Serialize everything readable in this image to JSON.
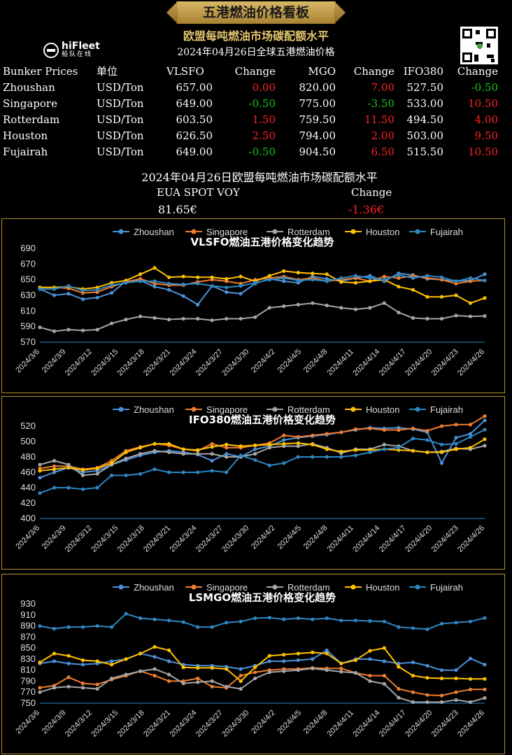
{
  "header": {
    "banner": "五港燃油价格看板",
    "subtitle": "欧盟每吨燃油市场碳配额水平",
    "date_title": "2024年04月26日全球五港燃油价格",
    "logo_name": "hiFleet",
    "logo_sub": "船队在线"
  },
  "prices": {
    "headers": [
      "Bunker Prices",
      "单位",
      "VLSFO",
      "Change",
      "MGO",
      "Change",
      "IFO380",
      "Change"
    ],
    "rows": [
      {
        "port": "Zhoushan",
        "unit": "USD/Ton",
        "vlsfo": "657.00",
        "vlsfo_chg": "0.00",
        "mgo": "820.00",
        "mgo_chg": "7.00",
        "ifo": "527.50",
        "ifo_chg": "-0.50"
      },
      {
        "port": "Singapore",
        "unit": "USD/Ton",
        "vlsfo": "649.00",
        "vlsfo_chg": "-0.50",
        "mgo": "775.00",
        "mgo_chg": "-3.50",
        "ifo": "533.00",
        "ifo_chg": "10.50"
      },
      {
        "port": "Rotterdam",
        "unit": "USD/Ton",
        "vlsfo": "603.50",
        "vlsfo_chg": "1.50",
        "mgo": "759.50",
        "mgo_chg": "11.50",
        "ifo": "494.50",
        "ifo_chg": "4.00"
      },
      {
        "port": "Houston",
        "unit": "USD/Ton",
        "vlsfo": "626.50",
        "vlsfo_chg": "2.50",
        "mgo": "794.00",
        "mgo_chg": "2.00",
        "ifo": "503.00",
        "ifo_chg": "9.50"
      },
      {
        "port": "Fujairah",
        "unit": "USD/Ton",
        "vlsfo": "649.00",
        "vlsfo_chg": "-0.50",
        "mgo": "904.50",
        "mgo_chg": "6.50",
        "ifo": "515.50",
        "ifo_chg": "10.50"
      }
    ],
    "colors": {
      "up": "#ff2020",
      "down": "#19c419",
      "flat": "#ff2020"
    }
  },
  "eua": {
    "title": "2024年04月26日欧盟每吨燃油市场碳配额水平",
    "label": "EUA SPOT VOY",
    "change_label": "Change",
    "value": "81.65€",
    "change": "-1.36€"
  },
  "series_colors": {
    "Zhoushan": "#4a90d9",
    "Singapore": "#ed7d31",
    "Rotterdam": "#a5a5a5",
    "Houston": "#ffc000",
    "Fujairah": "#2e86c1"
  },
  "chart_data": [
    {
      "type": "line",
      "title": "VLSFO燃油五港价格变化趋势",
      "legend_position": "top",
      "ylim": [
        570,
        690
      ],
      "yticks": [
        570,
        590,
        610,
        630,
        650,
        670,
        690
      ],
      "xtick_labels": [
        "2024/3/6",
        "2024/3/9",
        "2024/3/12",
        "2024/3/15",
        "2024/3/18",
        "2024/3/21",
        "2024/3/24",
        "2024/3/27",
        "2024/3/30",
        "2024/4/2",
        "2024/4/5",
        "2024/4/8",
        "2024/4/11",
        "2024/4/14",
        "2024/4/17",
        "2024/4/20",
        "2024/4/23",
        "2024/4/26"
      ],
      "series": [
        {
          "name": "Zhoushan",
          "values": [
            638,
            630,
            632,
            625,
            627,
            633,
            648,
            649,
            641,
            637,
            629,
            618,
            642,
            634,
            632,
            645,
            651,
            648,
            646,
            654,
            651,
            648,
            652,
            655,
            648,
            658,
            656,
            651,
            650,
            648,
            649,
            657
          ]
        },
        {
          "name": "Singapore",
          "values": [
            640,
            640,
            639,
            633,
            634,
            641,
            647,
            651,
            645,
            643,
            643,
            647,
            650,
            648,
            645,
            650,
            652,
            654,
            650,
            652,
            648,
            650,
            652,
            648,
            654,
            652,
            655,
            652,
            650,
            645,
            648,
            649
          ]
        },
        {
          "name": "Rotterdam",
          "values": [
            589,
            584,
            586,
            585,
            586,
            594,
            599,
            603,
            601,
            599,
            600,
            600,
            598,
            600,
            600,
            602,
            614,
            616,
            618,
            620,
            617,
            614,
            612,
            614,
            620,
            608,
            601,
            600,
            600,
            604,
            603,
            603.5
          ]
        },
        {
          "name": "Houston",
          "values": [
            640,
            640,
            641,
            638,
            640,
            646,
            649,
            657,
            665,
            653,
            654,
            653,
            653,
            651,
            654,
            648,
            655,
            661,
            659,
            658,
            657,
            647,
            646,
            648,
            650,
            641,
            637,
            628,
            628,
            630,
            620,
            626.5
          ]
        },
        {
          "name": "Fujairah",
          "values": [
            638,
            638,
            642,
            636,
            637,
            643,
            646,
            648,
            648,
            645,
            644,
            645,
            642,
            640,
            642,
            646,
            650,
            652,
            649,
            650,
            648,
            652,
            655,
            652,
            650,
            656,
            652,
            655,
            653,
            648,
            652,
            649
          ]
        }
      ]
    },
    {
      "type": "line",
      "title": "IFO380燃油五港价格变化趋势",
      "legend_position": "top",
      "ylim": [
        400,
        520
      ],
      "yticks": [
        400,
        420,
        440,
        460,
        480,
        500,
        520
      ],
      "xtick_labels": [
        "2024/3/6",
        "2024/3/9",
        "2024/3/12",
        "2024/3/15",
        "2024/3/18",
        "2024/3/21",
        "2024/3/24",
        "2024/3/27",
        "2024/3/30",
        "2024/4/2",
        "2024/4/5",
        "2024/4/8",
        "2024/4/11",
        "2024/4/14",
        "2024/4/17",
        "2024/4/20",
        "2024/4/23",
        "2024/4/26"
      ],
      "series": [
        {
          "name": "Zhoushan",
          "values": [
            453,
            460,
            466,
            460,
            462,
            470,
            476,
            482,
            486,
            488,
            486,
            483,
            475,
            484,
            480,
            490,
            494,
            502,
            505,
            507,
            509,
            512,
            515,
            518,
            517,
            518,
            516,
            512,
            472,
            505,
            510,
            527.5
          ]
        },
        {
          "name": "Singapore",
          "values": [
            465,
            468,
            468,
            464,
            466,
            475,
            488,
            493,
            497,
            495,
            490,
            488,
            497,
            492,
            492,
            495,
            498,
            508,
            506,
            508,
            510,
            512,
            516,
            517,
            515,
            515,
            517,
            514,
            520,
            522,
            522,
            533
          ]
        },
        {
          "name": "Rotterdam",
          "values": [
            470,
            475,
            470,
            456,
            458,
            470,
            478,
            484,
            488,
            486,
            484,
            484,
            484,
            480,
            480,
            484,
            492,
            494,
            494,
            497,
            492,
            485,
            490,
            490,
            496,
            494,
            488,
            486,
            487,
            491,
            490,
            494.5
          ]
        },
        {
          "name": "Houston",
          "values": [
            462,
            464,
            466,
            463,
            465,
            472,
            486,
            492,
            497,
            497,
            490,
            489,
            493,
            496,
            494,
            495,
            496,
            497,
            498,
            496,
            490,
            487,
            489,
            489,
            490,
            489,
            488,
            486,
            486,
            490,
            492,
            503
          ]
        },
        {
          "name": "Fujairah",
          "values": [
            433,
            440,
            440,
            438,
            440,
            456,
            456,
            458,
            464,
            460,
            460,
            460,
            462,
            460,
            482,
            476,
            469,
            472,
            480,
            480,
            480,
            480,
            482,
            486,
            490,
            492,
            504,
            502,
            496,
            497,
            506,
            515.5
          ]
        }
      ]
    },
    {
      "type": "line",
      "title": "LSMGO燃油五港价格变化趋势",
      "legend_position": "top",
      "ylim": [
        750,
        930
      ],
      "yticks": [
        750,
        770,
        790,
        810,
        830,
        850,
        870,
        890,
        910,
        930
      ],
      "xtick_labels": [
        "2024/3/6",
        "2024/3/9",
        "2024/3/12",
        "2024/3/15",
        "2024/3/18",
        "2024/3/21",
        "2024/3/24",
        "2024/3/27",
        "2024/3/30",
        "2024/4/2",
        "2024/4/5",
        "2024/4/8",
        "2024/4/11",
        "2024/4/14",
        "2024/4/17",
        "2024/4/20",
        "2024/4/23",
        "2024/4/26"
      ],
      "series": [
        {
          "name": "Zhoushan",
          "values": [
            822,
            826,
            822,
            820,
            822,
            826,
            830,
            840,
            834,
            826,
            820,
            818,
            818,
            816,
            812,
            818,
            826,
            826,
            828,
            830,
            846,
            822,
            830,
            830,
            826,
            822,
            824,
            818,
            810,
            810,
            831,
            820
          ]
        },
        {
          "name": "Singapore",
          "values": [
            778,
            782,
            797,
            786,
            784,
            793,
            800,
            808,
            800,
            790,
            790,
            795,
            780,
            778,
            800,
            806,
            810,
            812,
            812,
            814,
            813,
            813,
            805,
            800,
            800,
            776,
            770,
            765,
            764,
            770,
            775,
            775
          ]
        },
        {
          "name": "Rotterdam",
          "values": [
            770,
            778,
            780,
            778,
            776,
            795,
            802,
            808,
            812,
            802,
            786,
            788,
            790,
            780,
            776,
            795,
            806,
            808,
            810,
            813,
            810,
            807,
            805,
            790,
            785,
            760,
            752,
            752,
            752,
            756,
            752,
            759.5
          ]
        },
        {
          "name": "Houston",
          "values": [
            824,
            840,
            836,
            828,
            826,
            820,
            830,
            840,
            852,
            846,
            815,
            814,
            814,
            812,
            790,
            815,
            836,
            838,
            840,
            842,
            840,
            822,
            828,
            845,
            850,
            816,
            800,
            796,
            795,
            795,
            794,
            794
          ]
        },
        {
          "name": "Fujairah",
          "values": [
            890,
            885,
            888,
            888,
            890,
            888,
            912,
            904,
            902,
            900,
            897,
            888,
            888,
            896,
            898,
            904,
            905,
            902,
            904,
            902,
            904,
            900,
            900,
            899,
            898,
            888,
            886,
            884,
            894,
            896,
            898,
            904.5
          ]
        }
      ]
    }
  ]
}
